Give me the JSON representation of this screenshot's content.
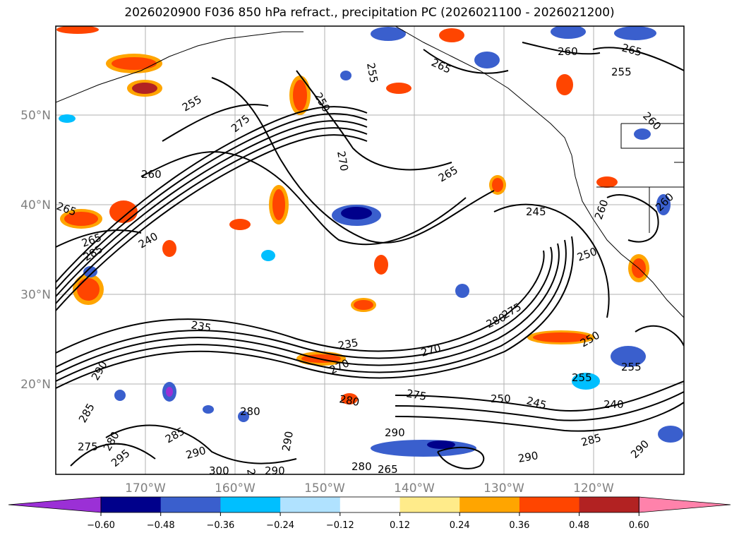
{
  "title": "2026020900 F036 850 hPa refract., precipitation PC (2026021100 - 2026021200)",
  "map": {
    "lat_ticks": [
      "50°N",
      "40°N",
      "30°N",
      "20°N"
    ],
    "lon_ticks": [
      "170°W",
      "160°W",
      "150°W",
      "140°W",
      "130°W",
      "120°W"
    ],
    "contour_labels": [
      "255",
      "260",
      "265",
      "275",
      "280",
      "285",
      "290",
      "295",
      "300",
      "240",
      "245",
      "250",
      "235",
      "270"
    ],
    "colors": {
      "land_border": "#000000",
      "grid": "#a0a0a0",
      "contour": "#000000"
    }
  },
  "colorbar": {
    "ticks": [
      "−0.60",
      "−0.48",
      "−0.36",
      "−0.24",
      "−0.12",
      "0.12",
      "0.24",
      "0.36",
      "0.48",
      "0.60"
    ],
    "colors": [
      "#9b30d6",
      "#00008b",
      "#3a5fcd",
      "#00bfff",
      "#b0e2ff",
      "#ffffff",
      "#ffeb8a",
      "#ffa500",
      "#ff4500",
      "#b22222",
      "#ff82ab"
    ]
  }
}
